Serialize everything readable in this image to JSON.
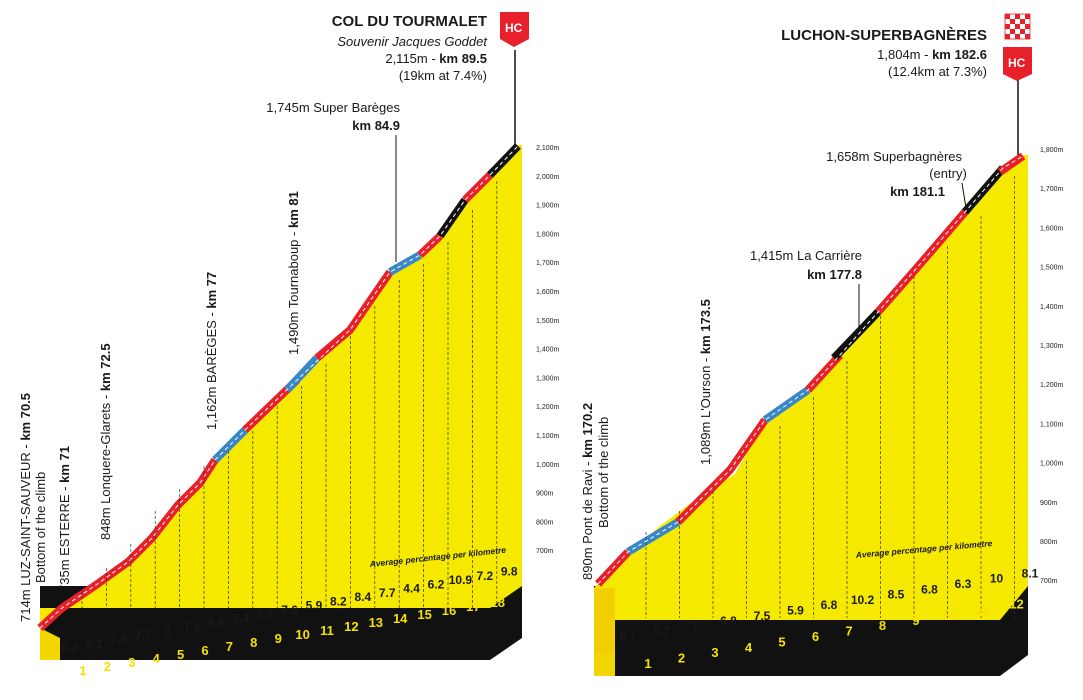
{
  "colors": {
    "fill": "#f5e900",
    "road_red": "#e8202a",
    "road_blue": "#3a87c8",
    "road_black": "#111111",
    "base": "#111111",
    "hc_flag": "#e8202a"
  },
  "left": {
    "summit_name": "COL DU TOURMALET",
    "summit_sub": "Souvenir Jacques Goddet",
    "summit_alt": "2,115m - ",
    "summit_km": "km 89.5",
    "summit_stats": "(19km at 7.4%)",
    "hc": "HC",
    "avg_label": "Average percentage per kilometre",
    "y_ticks": [
      "2,100m",
      "2,000m",
      "1,900m",
      "1,800m",
      "1,700m",
      "1,600m",
      "1,500m",
      "1,400m",
      "1,300m",
      "1,200m",
      "1,100m",
      "1,000m",
      "900m",
      "800m",
      "700m"
    ],
    "km_labels": [
      "1",
      "2",
      "3",
      "4",
      "5",
      "6",
      "7",
      "8",
      "9",
      "10",
      "11",
      "12",
      "13",
      "14",
      "15",
      "16",
      "17",
      "18"
    ],
    "gradients": [
      "6.2",
      "6.2",
      "7.6",
      "7.7",
      "8",
      "7.6",
      "8.6",
      "5.4",
      "8.7",
      "7.6",
      "5.9",
      "8.2",
      "8.4",
      "7.7",
      "4.4",
      "6.2",
      "10.9",
      "7.2",
      "9.8"
    ],
    "waypoints": [
      {
        "alt": "714m LUZ-SAINT-SAUVEUR - ",
        "km": "km 70.5",
        "line2": "Bottom of the climb"
      },
      {
        "alt": "735m ESTERRE - ",
        "km": "km 71"
      },
      {
        "alt": "848m Lonquere-Glarets - ",
        "km": "km 72.5"
      },
      {
        "alt": "1,162m BARÈGES - ",
        "km": "km 77"
      },
      {
        "alt": "1,490m Tournaboup - ",
        "km": "km 81"
      },
      {
        "alt": "1,745m Super Barèges",
        "km": "km 84.9"
      }
    ]
  },
  "right": {
    "summit_name": "LUCHON-SUPERBAGNÈRES",
    "summit_alt": "1,804m - ",
    "summit_km": "km 182.6",
    "summit_stats": "(12.4km at 7.3%)",
    "hc": "HC",
    "avg_label": "Average percentage per kilometre",
    "y_ticks": [
      "1,800m",
      "1,700m",
      "1,600m",
      "1,500m",
      "1,400m",
      "1,300m",
      "1,200m",
      "1,100m",
      "1,000m",
      "900m",
      "800m",
      "700m"
    ],
    "km_labels": [
      "1",
      "2",
      "3",
      "4",
      "5",
      "6",
      "7",
      "8",
      "9",
      "10",
      "11",
      "12"
    ],
    "gradients": [
      "8.1",
      "5.7",
      "7",
      "6.8",
      "7.5",
      "5.9",
      "6.8",
      "10.2",
      "8.5",
      "6.8",
      "6.3",
      "10",
      "8.1"
    ],
    "waypoints": [
      {
        "alt": "890m Pont de Ravi - ",
        "km": "km 170.2",
        "line2": "Bottom of the climb"
      },
      {
        "alt": "1,089m L'Ourson - ",
        "km": "km 173.5"
      },
      {
        "alt": "1,415m La Carrière",
        "km": "km 177.8"
      },
      {
        "alt": "1,658m Superbagnères",
        "line2": "(entry)",
        "km": "km 181.1"
      }
    ]
  }
}
